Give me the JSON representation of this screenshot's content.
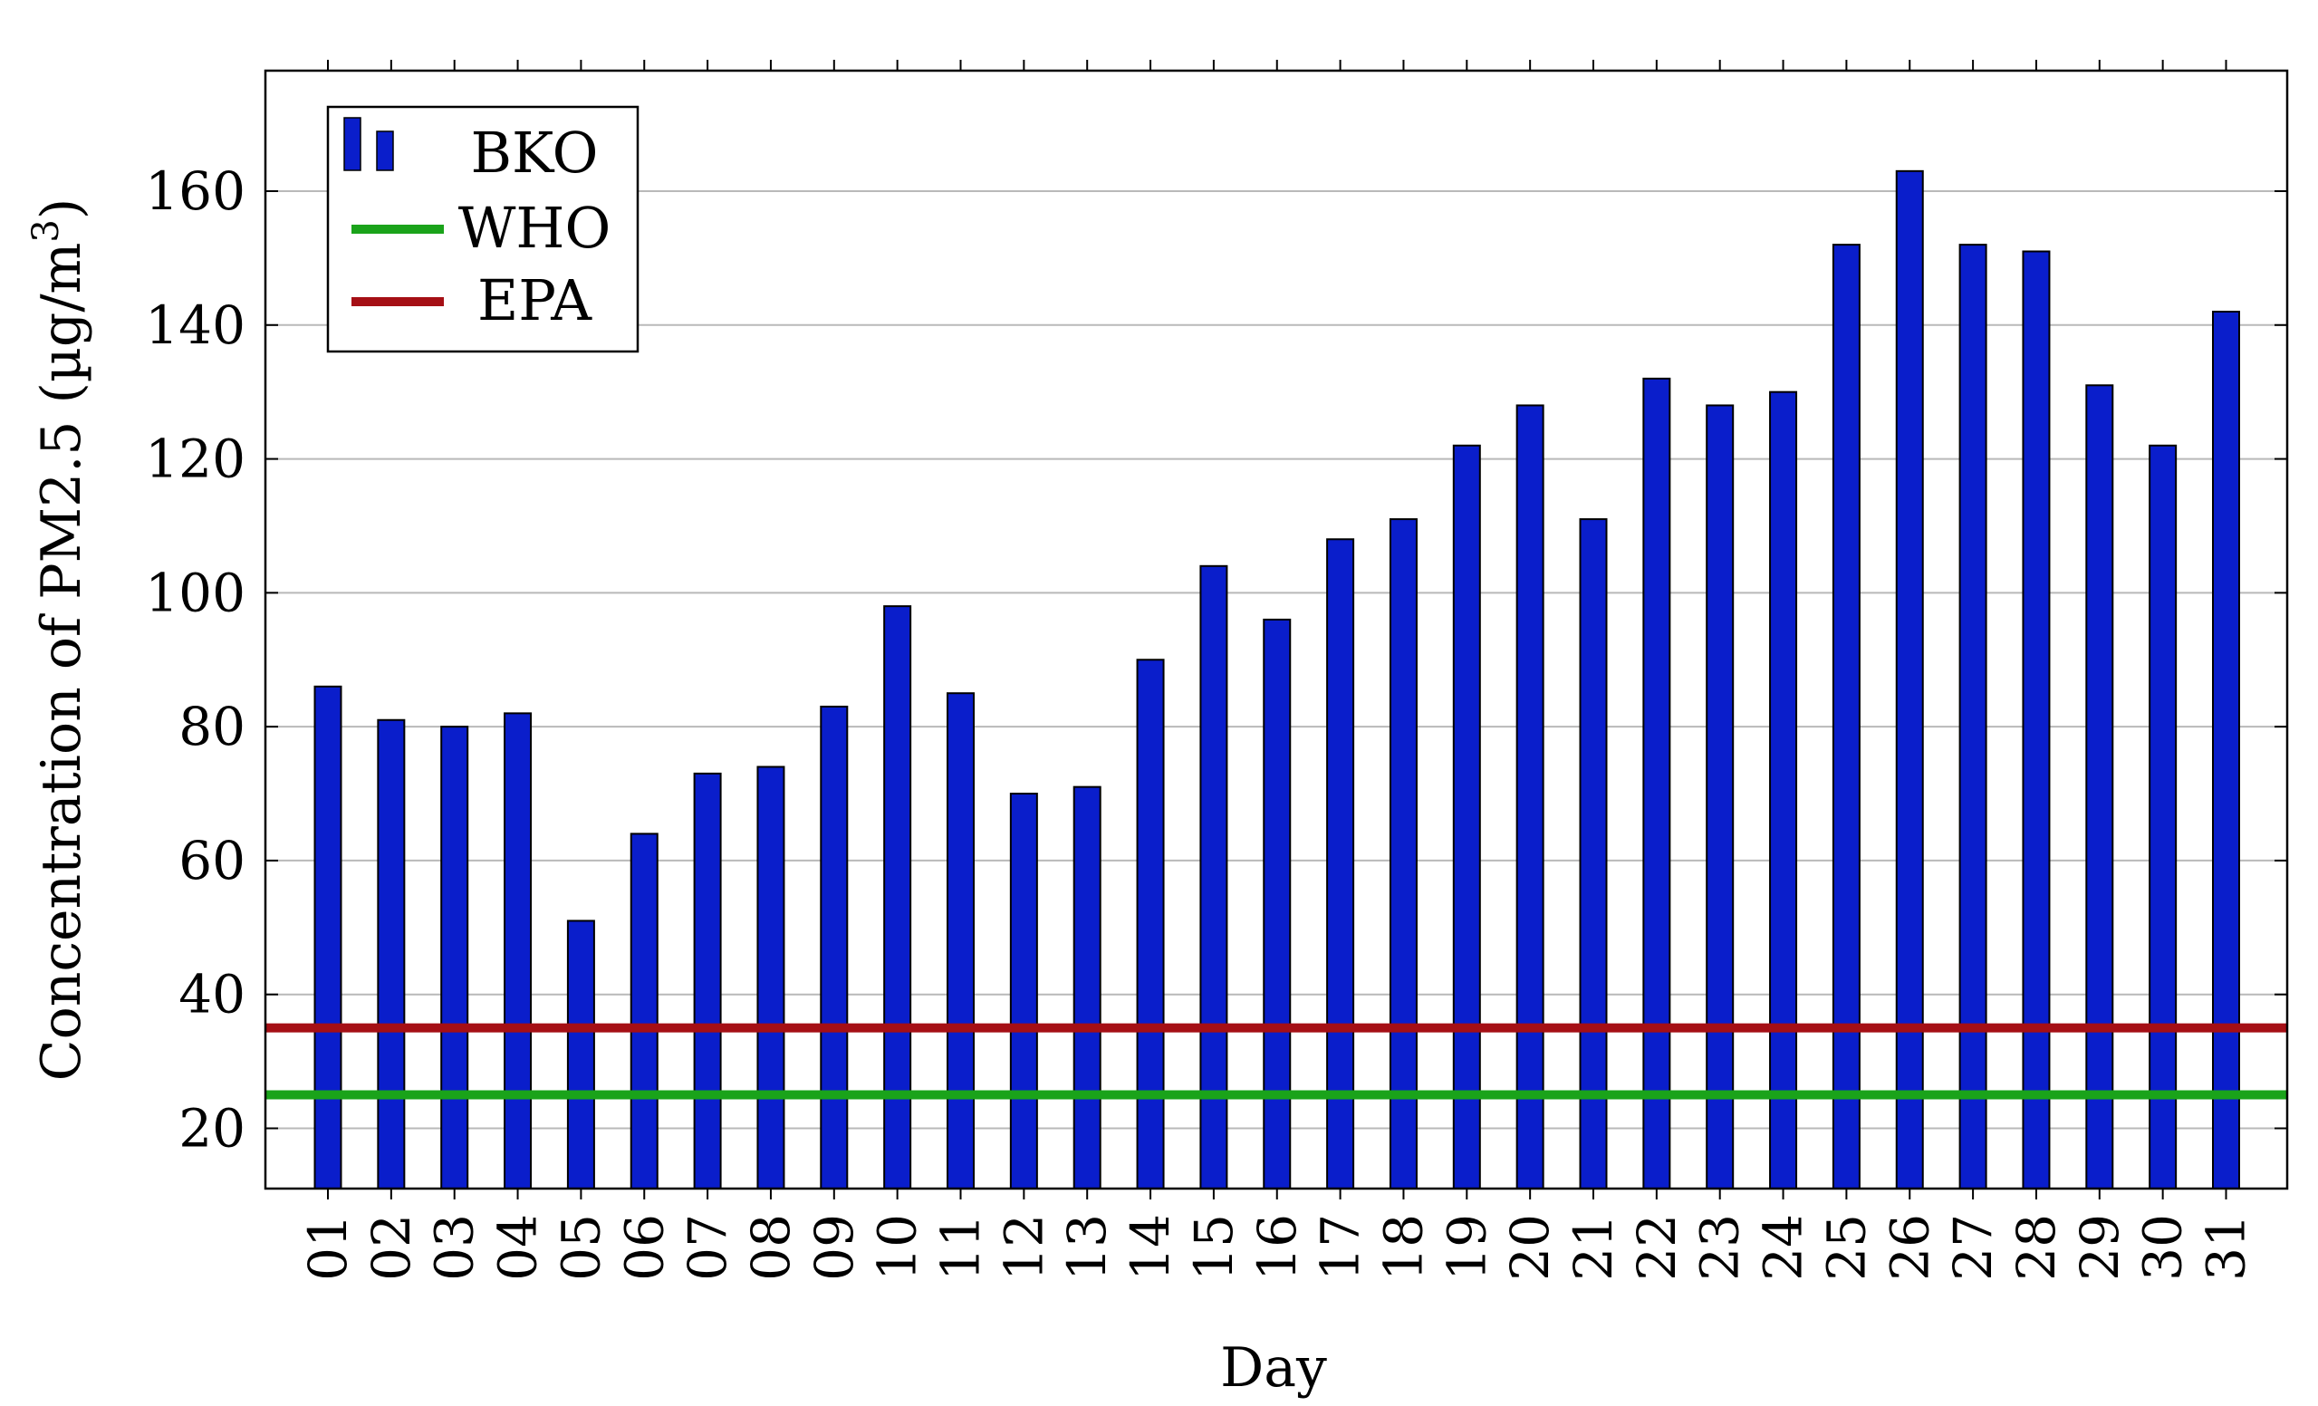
{
  "chart_data": {
    "type": "bar",
    "title": "",
    "xlabel": "Day",
    "ylabel": "Concentration of PM2.5 (µg/m³)",
    "ylabel_main": "Concentration of PM2.5 (µg/m",
    "ylabel_sup": "3",
    "ylabel_close": ")",
    "ylim": [
      11,
      178
    ],
    "yticks": [
      20,
      40,
      60,
      80,
      100,
      120,
      140,
      160
    ],
    "categories": [
      "01",
      "02",
      "03",
      "04",
      "05",
      "06",
      "07",
      "08",
      "09",
      "10",
      "11",
      "12",
      "13",
      "14",
      "15",
      "16",
      "17",
      "18",
      "19",
      "20",
      "21",
      "22",
      "23",
      "24",
      "25",
      "26",
      "27",
      "28",
      "29",
      "30",
      "31"
    ],
    "series": [
      {
        "name": "BKO",
        "color": "#0a1ecb",
        "values": [
          86,
          81,
          80,
          82,
          51,
          64,
          73,
          74,
          83,
          98,
          85,
          70,
          71,
          90,
          104,
          96,
          108,
          111,
          122,
          128,
          111,
          132,
          128,
          130,
          152,
          163,
          152,
          151,
          131,
          122,
          142
        ]
      }
    ],
    "reference_lines": [
      {
        "name": "WHO",
        "value": 25,
        "color": "#1aa31a"
      },
      {
        "name": "EPA",
        "value": 35,
        "color": "#a50f15"
      }
    ],
    "grid": true,
    "legend_position": "top-left"
  }
}
